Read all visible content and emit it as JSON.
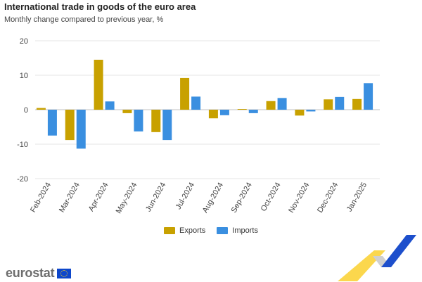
{
  "header": {
    "title": "International trade in goods of the euro area",
    "subtitle": "Monthly change compared to previous year, %"
  },
  "brand": {
    "name": "eurostat"
  },
  "colors": {
    "exports": "#c8a100",
    "imports": "#3a8fe0",
    "grid": "#e6e6e6",
    "zero": "#c0c0c0"
  },
  "chart_data": {
    "type": "bar",
    "categories": [
      "Feb-2024",
      "Mar-2024",
      "Apr-2024",
      "May-2024",
      "Jun-2024",
      "Jul-2024",
      "Aug-2024",
      "Sep-2024",
      "Oct-2024",
      "Nov-2024",
      "Dec-2024",
      "Jan-2025"
    ],
    "series": [
      {
        "name": "Exports",
        "values": [
          0.5,
          -8.8,
          14.5,
          -1.0,
          -6.5,
          9.2,
          -2.5,
          0.2,
          2.5,
          -1.7,
          3.0,
          3.1
        ]
      },
      {
        "name": "Imports",
        "values": [
          -7.5,
          -11.3,
          2.4,
          -6.3,
          -8.8,
          3.8,
          -1.6,
          -1.0,
          3.4,
          -0.5,
          3.7,
          7.7
        ]
      }
    ],
    "yticks": [
      20,
      10,
      0,
      -10,
      -20
    ],
    "ylim": [
      -20,
      20
    ],
    "grid": true,
    "legend_position": "bottom"
  }
}
